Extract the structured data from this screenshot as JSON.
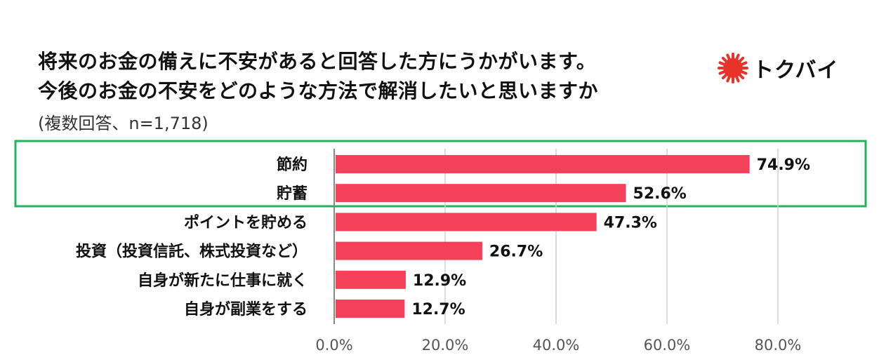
{
  "header": {
    "title_line1": "将来のお金の備えに不安があると回答した方にうかがいます。",
    "title_line2": "今後のお金の不安をどのような方法で解消したいと思いますか",
    "subtitle": "(複数回答、n=1,718)"
  },
  "logo": {
    "text": "トクバイ",
    "icon": "sun-burst-icon",
    "color": "#e8332a"
  },
  "colors": {
    "bar": "#f5405a",
    "highlight": "#22b35e",
    "grid": "#d0d0d0"
  },
  "chart_data": {
    "type": "bar",
    "orientation": "horizontal",
    "title": "将来のお金の備えに不安があると回答した方にうかがいます。今後のお金の不安をどのような方法で解消したいと思いますか",
    "subtitle": "(複数回答、n=1,718)",
    "categories": [
      "節約",
      "貯蓄",
      "ポイントを貯める",
      "投資（投資信託、株式投資など）",
      "自身が新たに仕事に就く",
      "自身が副業をする"
    ],
    "values": [
      74.9,
      52.6,
      47.3,
      26.7,
      12.9,
      12.7
    ],
    "value_labels": [
      "74.9%",
      "52.6%",
      "47.3%",
      "26.7%",
      "12.9%",
      "12.7%"
    ],
    "xlim": [
      0,
      80
    ],
    "ticks": [
      0,
      20,
      40,
      60,
      80
    ],
    "tick_labels": [
      "0.0%",
      "20.0%",
      "40.0%",
      "60.0%",
      "80.0%"
    ],
    "grid": true,
    "highlighted_categories": [
      "節約",
      "貯蓄"
    ]
  }
}
